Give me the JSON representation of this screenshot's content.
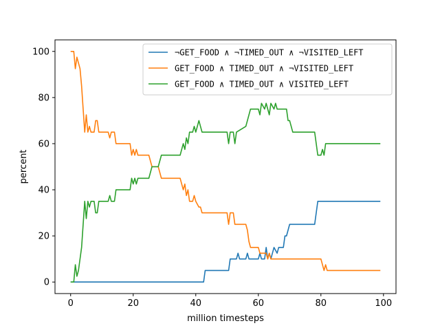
{
  "chart_data": {
    "type": "line",
    "xlabel": "million timesteps",
    "ylabel": "percent",
    "xlim": [
      -5,
      104
    ],
    "ylim": [
      -5,
      105
    ],
    "xticks": [
      0,
      20,
      40,
      60,
      80,
      100
    ],
    "yticks": [
      0,
      20,
      40,
      60,
      80,
      100
    ],
    "grid": false,
    "legend_position": "top-right",
    "series": [
      {
        "name": "¬GET_FOOD ∧ ¬TIMED_OUT ∧ ¬VISITED_LEFT",
        "color": "#1f77b4",
        "points": [
          [
            0,
            0
          ],
          [
            42.5,
            0
          ],
          [
            43,
            5
          ],
          [
            50.5,
            5
          ],
          [
            51,
            10
          ],
          [
            53,
            10
          ],
          [
            53.5,
            12.5
          ],
          [
            54,
            10
          ],
          [
            56,
            10
          ],
          [
            56.5,
            12.5
          ],
          [
            57,
            10
          ],
          [
            60,
            10
          ],
          [
            60.5,
            12.5
          ],
          [
            61,
            10
          ],
          [
            62,
            10
          ],
          [
            62.5,
            15
          ],
          [
            63,
            10
          ],
          [
            63.5,
            12.5
          ],
          [
            64,
            10
          ],
          [
            65,
            15
          ],
          [
            66,
            12.5
          ],
          [
            66.5,
            15
          ],
          [
            68,
            15
          ],
          [
            68.5,
            20
          ],
          [
            69,
            20
          ],
          [
            69.5,
            22.5
          ],
          [
            70,
            25
          ],
          [
            77,
            25
          ],
          [
            78,
            25
          ],
          [
            79,
            35
          ],
          [
            99,
            35
          ]
        ]
      },
      {
        "name": "GET_FOOD ∧ TIMED_OUT ∧ ¬VISITED_LEFT",
        "color": "#ff7f0e",
        "points": [
          [
            0,
            100
          ],
          [
            1,
            100
          ],
          [
            1.5,
            92.5
          ],
          [
            2,
            97.5
          ],
          [
            2.5,
            95
          ],
          [
            3,
            92.5
          ],
          [
            3.5,
            85
          ],
          [
            4,
            75
          ],
          [
            4.5,
            65
          ],
          [
            5,
            72.5
          ],
          [
            5.5,
            65
          ],
          [
            6,
            67.5
          ],
          [
            6.5,
            65
          ],
          [
            7.5,
            65
          ],
          [
            8,
            70
          ],
          [
            8.5,
            70
          ],
          [
            9,
            65
          ],
          [
            12,
            65
          ],
          [
            12.5,
            62.5
          ],
          [
            13,
            65
          ],
          [
            14,
            65
          ],
          [
            14.5,
            60
          ],
          [
            19,
            60
          ],
          [
            19.5,
            55
          ],
          [
            20,
            57.5
          ],
          [
            20.5,
            55
          ],
          [
            21,
            57.5
          ],
          [
            21.5,
            55
          ],
          [
            25,
            55
          ],
          [
            25.5,
            52.5
          ],
          [
            26,
            50
          ],
          [
            27,
            50
          ],
          [
            28,
            50
          ],
          [
            29,
            45
          ],
          [
            35,
            45
          ],
          [
            35.5,
            42.5
          ],
          [
            36,
            40
          ],
          [
            36.5,
            42.5
          ],
          [
            37,
            37.5
          ],
          [
            37.5,
            40
          ],
          [
            38,
            35
          ],
          [
            39,
            35
          ],
          [
            39.5,
            37.5
          ],
          [
            40,
            35
          ],
          [
            41,
            32.5
          ],
          [
            41.5,
            32.5
          ],
          [
            42,
            30
          ],
          [
            50,
            30
          ],
          [
            50.5,
            25
          ],
          [
            51,
            30
          ],
          [
            52,
            30
          ],
          [
            52.5,
            25
          ],
          [
            56,
            25
          ],
          [
            56.5,
            22.5
          ],
          [
            57,
            17.5
          ],
          [
            57.5,
            15
          ],
          [
            60,
            15
          ],
          [
            60.5,
            12.5
          ],
          [
            62,
            12.5
          ],
          [
            62.5,
            12.5
          ],
          [
            63,
            10
          ],
          [
            63.5,
            12.5
          ],
          [
            64,
            10
          ],
          [
            80,
            10
          ],
          [
            80.5,
            7.5
          ],
          [
            81,
            5
          ],
          [
            81.5,
            7.5
          ],
          [
            82,
            5
          ],
          [
            99,
            5
          ]
        ]
      },
      {
        "name": "GET_FOOD ∧ TIMED_OUT ∧ VISITED_LEFT",
        "color": "#2ca02c",
        "points": [
          [
            0,
            0
          ],
          [
            1,
            0
          ],
          [
            1.5,
            7.5
          ],
          [
            2,
            2.5
          ],
          [
            2.5,
            5
          ],
          [
            3,
            10
          ],
          [
            3.5,
            15
          ],
          [
            4,
            25
          ],
          [
            4.5,
            35
          ],
          [
            5,
            27.5
          ],
          [
            5.5,
            35
          ],
          [
            6,
            32.5
          ],
          [
            6.5,
            35
          ],
          [
            7.5,
            35
          ],
          [
            8,
            30
          ],
          [
            8.5,
            30
          ],
          [
            9,
            35
          ],
          [
            12,
            35
          ],
          [
            12.5,
            37.5
          ],
          [
            13,
            35
          ],
          [
            14,
            35
          ],
          [
            14.5,
            40
          ],
          [
            19,
            40
          ],
          [
            19.5,
            45
          ],
          [
            20,
            42.5
          ],
          [
            20.5,
            45
          ],
          [
            21,
            42.5
          ],
          [
            21.5,
            45
          ],
          [
            25,
            45
          ],
          [
            25.5,
            47.5
          ],
          [
            26,
            50
          ],
          [
            28,
            50
          ],
          [
            29,
            55
          ],
          [
            35,
            55
          ],
          [
            35.5,
            57.5
          ],
          [
            36,
            60
          ],
          [
            36.5,
            57.5
          ],
          [
            37,
            62.5
          ],
          [
            37.5,
            60
          ],
          [
            38,
            65
          ],
          [
            39,
            65
          ],
          [
            39.5,
            67.5
          ],
          [
            40,
            65
          ],
          [
            41,
            70
          ],
          [
            41.5,
            67.5
          ],
          [
            42,
            65
          ],
          [
            50,
            65
          ],
          [
            50.5,
            60
          ],
          [
            51,
            65
          ],
          [
            52,
            65
          ],
          [
            52.5,
            60
          ],
          [
            53,
            65
          ],
          [
            56,
            67.5
          ],
          [
            56.5,
            70
          ],
          [
            57,
            72.5
          ],
          [
            57.5,
            75
          ],
          [
            60,
            75
          ],
          [
            60.5,
            72.5
          ],
          [
            61,
            77.5
          ],
          [
            62,
            75
          ],
          [
            62.5,
            77.5
          ],
          [
            63,
            75
          ],
          [
            63.5,
            72.5
          ],
          [
            64,
            77.5
          ],
          [
            65,
            75
          ],
          [
            65.5,
            77.5
          ],
          [
            66,
            75
          ],
          [
            69,
            75
          ],
          [
            69.5,
            70
          ],
          [
            70,
            70
          ],
          [
            70.5,
            67.5
          ],
          [
            71,
            65
          ],
          [
            77,
            65
          ],
          [
            78,
            65
          ],
          [
            79,
            55
          ],
          [
            80,
            55
          ],
          [
            80.5,
            57.5
          ],
          [
            81,
            55
          ],
          [
            81.5,
            60
          ],
          [
            82,
            60
          ],
          [
            99,
            60
          ]
        ]
      }
    ]
  }
}
